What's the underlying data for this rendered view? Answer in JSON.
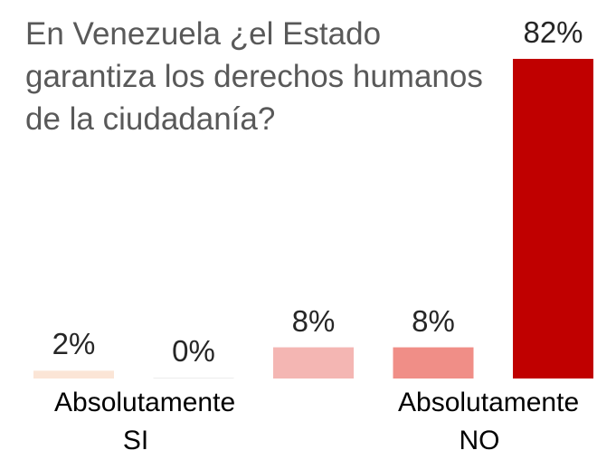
{
  "chart_data": {
    "type": "bar",
    "title": "En Venezuela ¿el Estado garantiza los derechos humanos de la ciudadanía?",
    "categories": [
      "Absolutamente SI",
      null,
      null,
      null,
      "Absolutamente NO"
    ],
    "values": [
      2,
      0,
      8,
      8,
      82
    ],
    "value_labels": [
      "2%",
      "0%",
      "8%",
      "8%",
      "82%"
    ],
    "colors": [
      "#fbe5d6",
      "#ececec",
      "#f4b6b3",
      "#f08e87",
      "#c00000"
    ]
  }
}
